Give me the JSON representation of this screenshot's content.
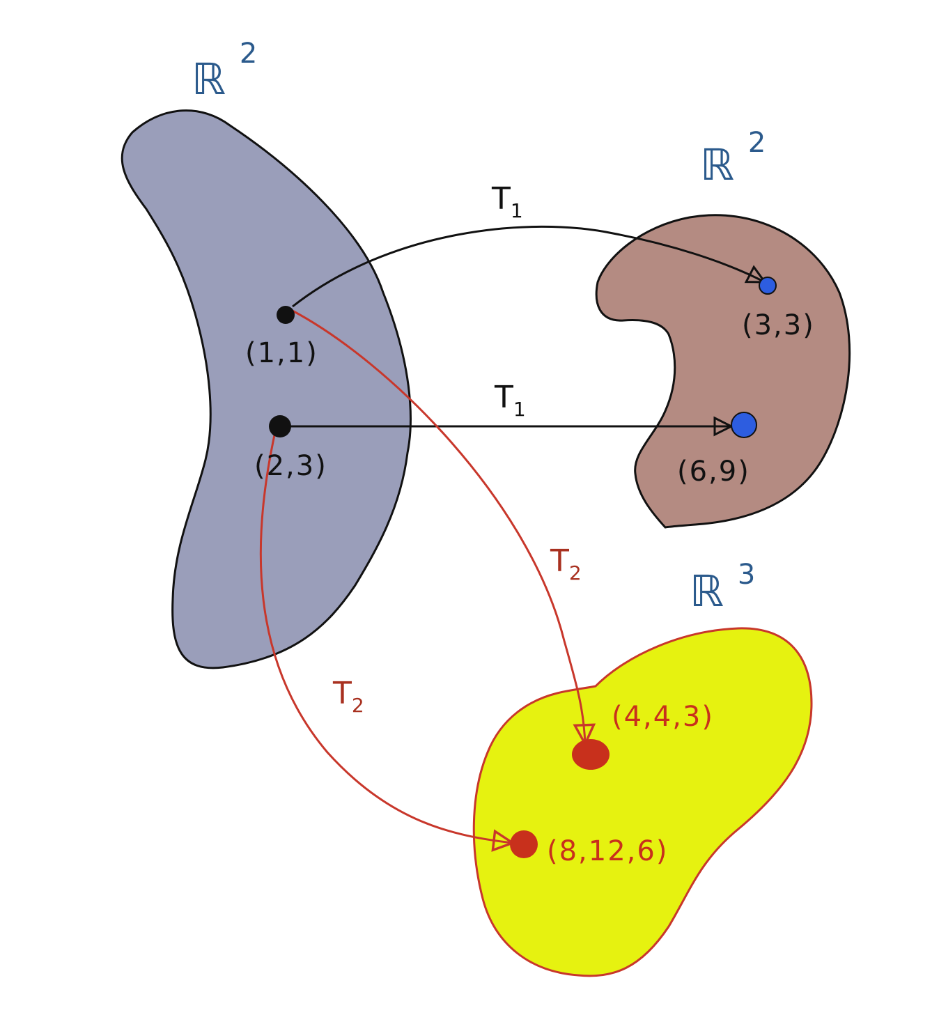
{
  "colors": {
    "domain_fill": "#9a9eba",
    "codomain2_fill": "#b48b82",
    "codomain3_fill": "#e6f210",
    "codomain3_stroke": "#c8372b",
    "ink": "#111111",
    "blue_label": "#2b5a8c",
    "blue_point": "#2d5de0",
    "red": "#c8372b",
    "red_label": "#a8301f",
    "red_point": "#c8301c"
  },
  "spaces": {
    "domain": {
      "symbol": "ℝ",
      "exponent": "2"
    },
    "codomain_t1": {
      "symbol": "ℝ",
      "exponent": "2"
    },
    "codomain_t2": {
      "symbol": "ℝ",
      "exponent": "3"
    }
  },
  "points": {
    "domain": [
      "(1,1)",
      "(2,3)"
    ],
    "t1_images": [
      "(3,3)",
      "(6,9)"
    ],
    "t2_images": [
      "(4,4,3)",
      "(8,12,6)"
    ]
  },
  "maps": {
    "t1": {
      "letter": "T",
      "subscript": "1"
    },
    "t2": {
      "letter": "T",
      "subscript": "2"
    }
  }
}
